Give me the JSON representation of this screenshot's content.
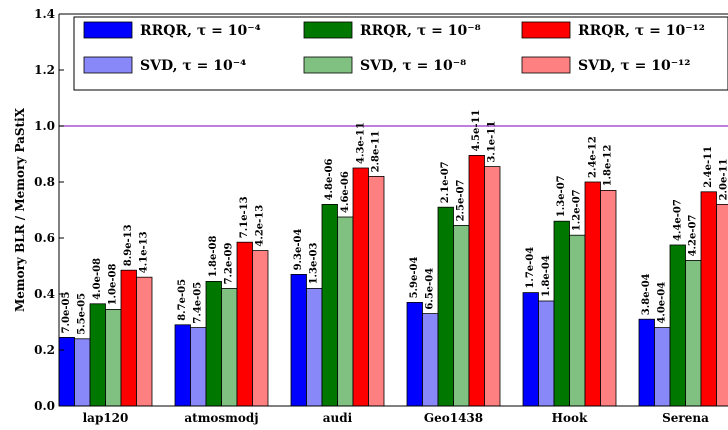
{
  "chart_data": {
    "type": "bar",
    "ylabel": "Memory BLR / Memory PaStiX",
    "ylim": [
      0,
      1.4
    ],
    "yticks": [
      "0.0",
      "0.2",
      "0.4",
      "0.6",
      "0.8",
      "1.0",
      "1.2",
      "1.4"
    ],
    "reference_line": {
      "y": 1.0,
      "color": "#9932cc"
    },
    "legend_position": "top",
    "categories": [
      "lap120",
      "atmosmodj",
      "audi",
      "Geo1438",
      "Hook",
      "Serena"
    ],
    "series": [
      {
        "name": "RRQR, τ = 10⁻⁴",
        "color": "#0000ff",
        "values": [
          0.245,
          0.29,
          0.47,
          0.37,
          0.405,
          0.31
        ],
        "labels": [
          "7.0e-05",
          "8.7e-05",
          "9.3e-04",
          "5.9e-04",
          "1.7e-04",
          "3.8e-04"
        ]
      },
      {
        "name": "SVD, τ = 10⁻⁴",
        "color": "#8888f8",
        "values": [
          0.24,
          0.28,
          0.42,
          0.33,
          0.375,
          0.28
        ],
        "labels": [
          "5.5e-05",
          "7.4e-05",
          "1.3e-03",
          "6.5e-04",
          "1.8e-04",
          "4.0e-04"
        ]
      },
      {
        "name": "RRQR, τ = 10⁻⁸",
        "color": "#007800",
        "values": [
          0.365,
          0.445,
          0.72,
          0.71,
          0.66,
          0.575
        ],
        "labels": [
          "4.0e-08",
          "1.8e-08",
          "4.8e-06",
          "2.1e-07",
          "1.3e-07",
          "4.4e-07"
        ]
      },
      {
        "name": "SVD, τ = 10⁻⁸",
        "color": "#80c080",
        "values": [
          0.345,
          0.42,
          0.675,
          0.645,
          0.61,
          0.52
        ],
        "labels": [
          "1.0e-08",
          "7.2e-09",
          "4.6e-06",
          "2.5e-07",
          "1.2e-07",
          "4.2e-07"
        ]
      },
      {
        "name": "RRQR, τ = 10⁻¹²",
        "color": "#ff0000",
        "values": [
          0.485,
          0.585,
          0.85,
          0.895,
          0.8,
          0.765
        ],
        "labels": [
          "8.9e-13",
          "7.1e-13",
          "4.3e-11",
          "4.5e-11",
          "2.4e-12",
          "2.4e-11"
        ]
      },
      {
        "name": "SVD, τ = 10⁻¹²",
        "color": "#ff8080",
        "values": [
          0.46,
          0.555,
          0.82,
          0.855,
          0.77,
          0.72
        ],
        "labels": [
          "4.1e-13",
          "4.2e-13",
          "2.8e-11",
          "3.1e-11",
          "1.8e-12",
          "2.0e-11"
        ]
      }
    ]
  }
}
